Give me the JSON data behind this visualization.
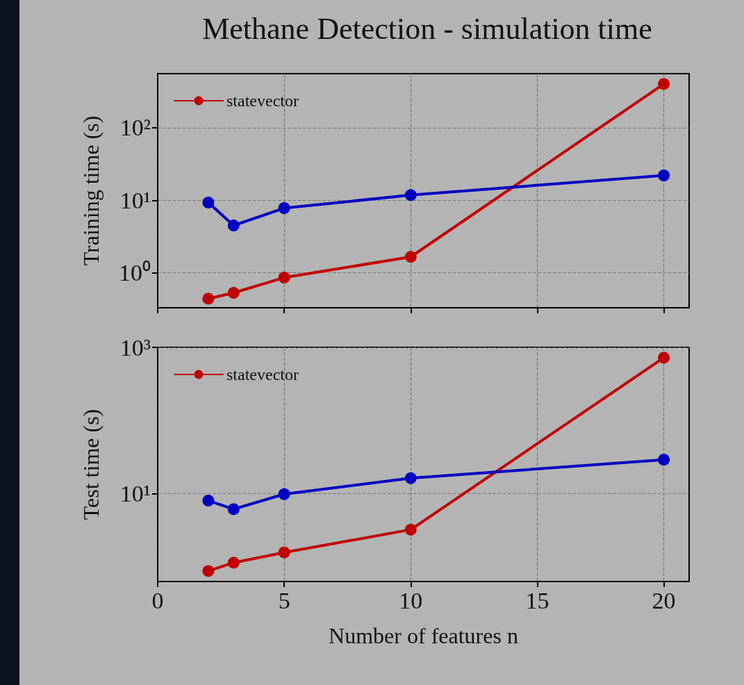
{
  "chart_data": [
    {
      "type": "line",
      "title": "Methane Detection - simulation time",
      "ylabel": "Training time (s)",
      "x": [
        2,
        3,
        5,
        10,
        20
      ],
      "series": [
        {
          "name": "statevector",
          "color": "#c00000",
          "values": [
            0.44,
            0.53,
            0.86,
            1.66,
            401
          ]
        },
        {
          "color": "#0000c0",
          "values": [
            9.3,
            4.5,
            7.8,
            11.8,
            22
          ]
        }
      ],
      "xlim": [
        0,
        21
      ],
      "xticks": [
        0,
        5,
        10,
        15,
        20
      ],
      "ylim": [
        0.33,
        557
      ],
      "yticks": [
        {
          "value": 1,
          "label": "10⁰"
        },
        {
          "value": 10,
          "label": "10¹"
        },
        {
          "value": 100,
          "label": "10²"
        }
      ],
      "log": "y",
      "grid": true,
      "legend": "top left",
      "marker": "circle",
      "line_style": "solid",
      "tick_labels": "y"
    },
    {
      "type": "line",
      "xlabel": "Number of features n",
      "ylabel": "Test time (s)",
      "x": [
        2,
        3,
        5,
        10,
        20
      ],
      "series": [
        {
          "name": "statevector",
          "color": "#c00000",
          "values": [
            0.87,
            1.13,
            1.56,
            3.2,
            721
          ]
        },
        {
          "color": "#0000c0",
          "values": [
            8.0,
            6.1,
            9.8,
            16.2,
            29
          ]
        }
      ],
      "xlim": [
        0,
        21
      ],
      "xticks": [
        0,
        5,
        10,
        15,
        20
      ],
      "ylim": [
        0.625,
        1000
      ],
      "yticks": [
        {
          "value": 10,
          "label": "10¹"
        },
        {
          "value": 1000,
          "label": "10³"
        }
      ],
      "log": "y",
      "grid": true,
      "legend": "top left",
      "marker": "circle",
      "line_style": "solid"
    }
  ]
}
